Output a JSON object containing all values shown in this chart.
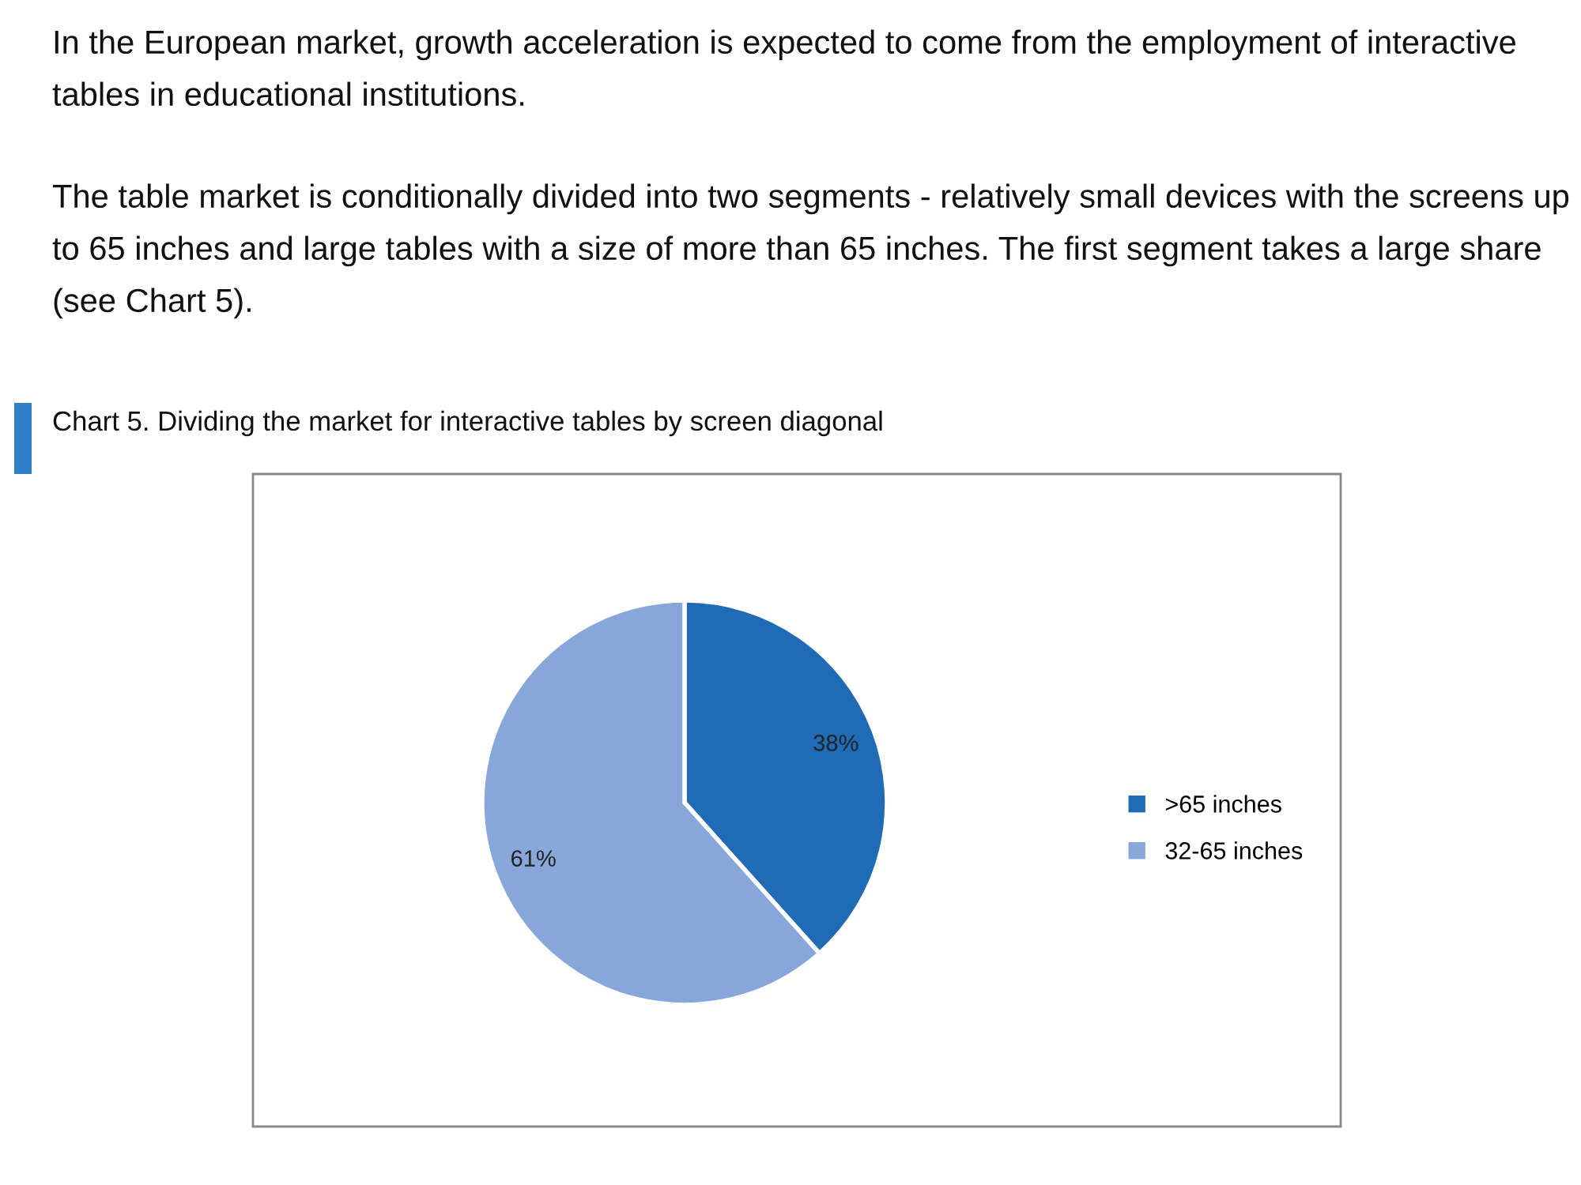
{
  "chart_data": {
    "type": "pie",
    "title": "Chart 5. Dividing the market for interactive tables by screen diagonal",
    "annotations": [
      "In the European market, growth acceleration is expected to come from the employment of interactive tables in educational institutions.",
      "The table market is conditionally divided into two segments - relatively small devices with the screens up to 65 inches and large tables with a size of more than 65 inches. The first segment takes a large share (see Chart 5)."
    ],
    "categories": [
      ">65 inches",
      "32-65 inches"
    ],
    "values": [
      38,
      61
    ],
    "value_labels": [
      "38%",
      "61%"
    ],
    "colors": [
      "#1f6bb5",
      "#87a6da"
    ],
    "legend": "right"
  }
}
